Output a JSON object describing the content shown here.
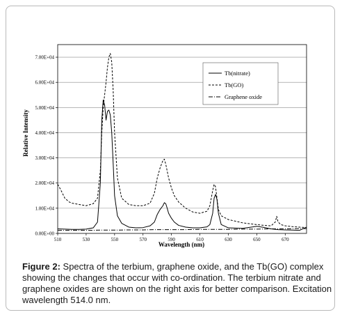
{
  "caption": {
    "label": "Figure 2:",
    "text": " Spectra of the terbium, graphene oxide, and the Tb(GO) complex showing the changes that occur with co-ordination. The terbium nitrate and graphene oxides are shown on the right axis for better comparison. Excitation wavelength 514.0 nm."
  },
  "chart_data": {
    "type": "line",
    "xlabel": "Wavelength (nm)",
    "ylabel": "Relative Intensity",
    "xlim": [
      510,
      685
    ],
    "ylim": [
      0,
      75000
    ],
    "x_ticks": [
      510,
      530,
      550,
      570,
      590,
      610,
      630,
      650,
      670
    ],
    "y_ticks": [
      0,
      10000,
      20000,
      30000,
      40000,
      50000,
      60000,
      70000
    ],
    "y_tick_labels": [
      "0.00E+00",
      "1.00E+04",
      "2.00E+04",
      "3.00E+04",
      "4.00E+04",
      "5.00E+04",
      "6.00E+04",
      "7.00E+04"
    ],
    "grid": "horizontal",
    "legend_position": "top-right",
    "series": [
      {
        "name": "Tb(nitrate)",
        "style": "solid",
        "color": "#000000",
        "x": [
          510,
          515,
          520,
          525,
          530,
          535,
          538,
          540,
          541,
          542,
          543,
          544,
          545,
          546,
          547,
          548,
          549,
          550,
          552,
          555,
          560,
          565,
          570,
          575,
          578,
          580,
          582,
          584,
          585,
          586,
          587,
          588,
          590,
          592,
          595,
          600,
          605,
          610,
          615,
          617,
          619,
          620,
          621,
          622,
          623,
          625,
          630,
          640,
          650,
          655,
          660,
          665,
          670,
          675,
          680,
          685
        ],
        "y": [
          1800,
          1700,
          1600,
          1600,
          1700,
          2200,
          4500,
          20000,
          45000,
          53000,
          51000,
          45000,
          48500,
          49000,
          47000,
          40000,
          28000,
          15000,
          7000,
          4000,
          2500,
          2200,
          2300,
          3000,
          4500,
          7500,
          9500,
          11000,
          12200,
          11800,
          10000,
          8000,
          6000,
          4500,
          3200,
          2500,
          2200,
          2200,
          2600,
          3500,
          8000,
          14000,
          15500,
          13500,
          8000,
          3500,
          2200,
          2000,
          2800,
          2400,
          1800,
          1500,
          1400,
          1300,
          1200,
          2500
        ]
      },
      {
        "name": "Tb(GO)",
        "style": "dashed",
        "color": "#000000",
        "x": [
          510,
          512,
          515,
          518,
          520,
          525,
          530,
          535,
          538,
          540,
          541,
          542,
          543,
          544,
          545,
          546,
          547,
          548,
          549,
          550,
          552,
          555,
          560,
          565,
          570,
          575,
          578,
          580,
          582,
          584,
          585,
          586,
          588,
          590,
          592,
          595,
          600,
          605,
          610,
          615,
          617,
          619,
          620,
          621,
          622,
          623,
          625,
          630,
          640,
          650,
          655,
          660,
          663,
          664,
          665,
          667,
          670,
          675,
          680,
          685
        ],
        "y": [
          19500,
          17500,
          14000,
          12500,
          12000,
          11500,
          11000,
          11800,
          14000,
          25000,
          40000,
          50000,
          55000,
          60000,
          66000,
          70000,
          71500,
          68000,
          57000,
          40000,
          22000,
          14000,
          11500,
          11000,
          11000,
          12000,
          16000,
          22000,
          26000,
          29000,
          29500,
          27500,
          22000,
          18000,
          15000,
          12500,
          10000,
          8500,
          8000,
          8800,
          11000,
          17000,
          19500,
          18500,
          14000,
          9500,
          7000,
          5500,
          4200,
          3500,
          3200,
          3000,
          4500,
          6800,
          4500,
          3500,
          3000,
          2700,
          2500,
          2300
        ]
      },
      {
        "name": "Graphene oxide",
        "style": "dashdot",
        "color": "#000000",
        "x": [
          510,
          520,
          530,
          540,
          550,
          560,
          570,
          580,
          590,
          600,
          610,
          620,
          630,
          640,
          650,
          660,
          670,
          680,
          685
        ],
        "y": [
          1200,
          1200,
          1200,
          1300,
          1300,
          1400,
          1400,
          1500,
          1500,
          1500,
          1600,
          1600,
          1600,
          1700,
          1700,
          1800,
          1800,
          1900,
          1900
        ]
      }
    ]
  }
}
